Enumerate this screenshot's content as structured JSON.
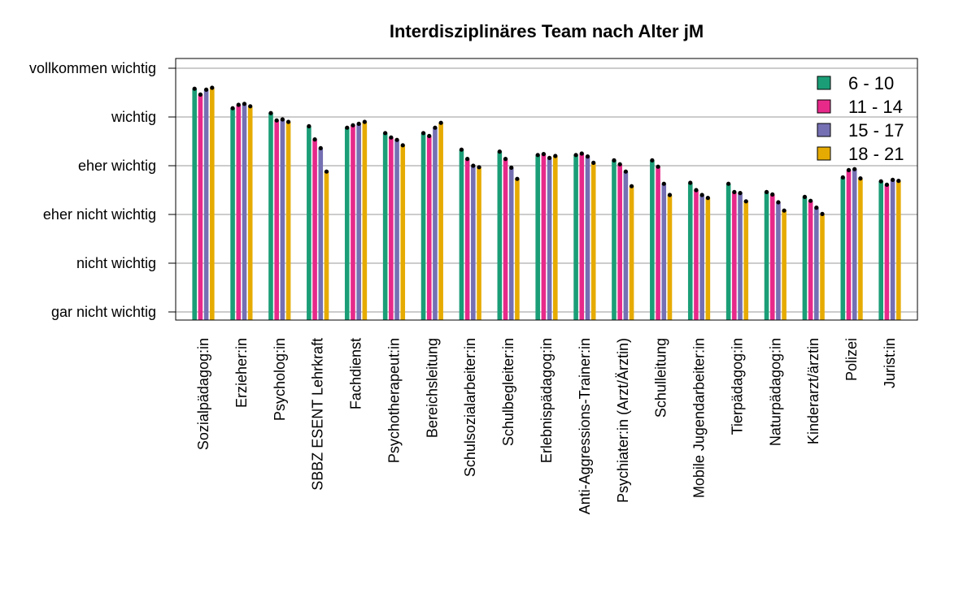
{
  "chart_data": {
    "type": "bar",
    "title": "Interdisziplinäres Team nach Alter jM",
    "xlabel": "",
    "ylabel": "",
    "ylim": [
      1,
      6
    ],
    "y_tick_values": [
      1,
      2,
      3,
      4,
      5,
      6
    ],
    "y_tick_labels": [
      "gar nicht wichtig",
      "nicht wichtig",
      "eher nicht wichtig",
      "eher wichtig",
      "wichtig",
      "vollkommen wichtig"
    ],
    "grid": "horizontal",
    "legend_position": "top-right",
    "categories": [
      "Sozialpädagog:in",
      "Erzieher:in",
      "Psycholog:in",
      "SBBZ ESENT Lehrkraft",
      "Fachdienst",
      "Psychotherapeut:in",
      "Bereichsleitung",
      "Schulsozialarbeiter:in",
      "Schulbegleiter:in",
      "Erlebnispädagog:in",
      "Anti-Aggressions-Trainer:in",
      "Psychiater:in (Arzt/Ärztin)",
      "Schulleitung",
      "Mobile Jugendarbeiter:in",
      "Tierpädagog:in",
      "Naturpädagog:in",
      "Kinderarzt/ärztin",
      "Polizei",
      "Jurist:in"
    ],
    "series": [
      {
        "name": "6 - 10",
        "color": "#1b9e77",
        "values": [
          5.58,
          5.18,
          5.08,
          4.81,
          4.78,
          4.67,
          4.67,
          4.33,
          4.29,
          4.22,
          4.22,
          4.11,
          4.11,
          3.65,
          3.63,
          3.46,
          3.36,
          3.76,
          3.68
        ]
      },
      {
        "name": "11 - 14",
        "color": "#e7298a",
        "values": [
          5.46,
          5.25,
          4.93,
          4.54,
          4.83,
          4.58,
          4.61,
          4.14,
          4.14,
          4.24,
          4.25,
          4.03,
          3.98,
          3.5,
          3.46,
          3.41,
          3.28,
          3.91,
          3.61
        ]
      },
      {
        "name": "15 - 17",
        "color": "#7570b3",
        "values": [
          5.56,
          5.27,
          4.95,
          4.36,
          4.86,
          4.53,
          4.78,
          4.0,
          3.96,
          4.16,
          4.19,
          3.88,
          3.63,
          3.4,
          3.44,
          3.25,
          3.14,
          3.93,
          3.71
        ]
      },
      {
        "name": "18 - 21",
        "color": "#e6ab02",
        "values": [
          5.6,
          5.22,
          4.9,
          3.88,
          4.9,
          4.42,
          4.88,
          3.97,
          3.73,
          4.2,
          4.06,
          3.58,
          3.4,
          3.34,
          3.27,
          3.08,
          3.01,
          3.74,
          3.69
        ]
      }
    ]
  }
}
